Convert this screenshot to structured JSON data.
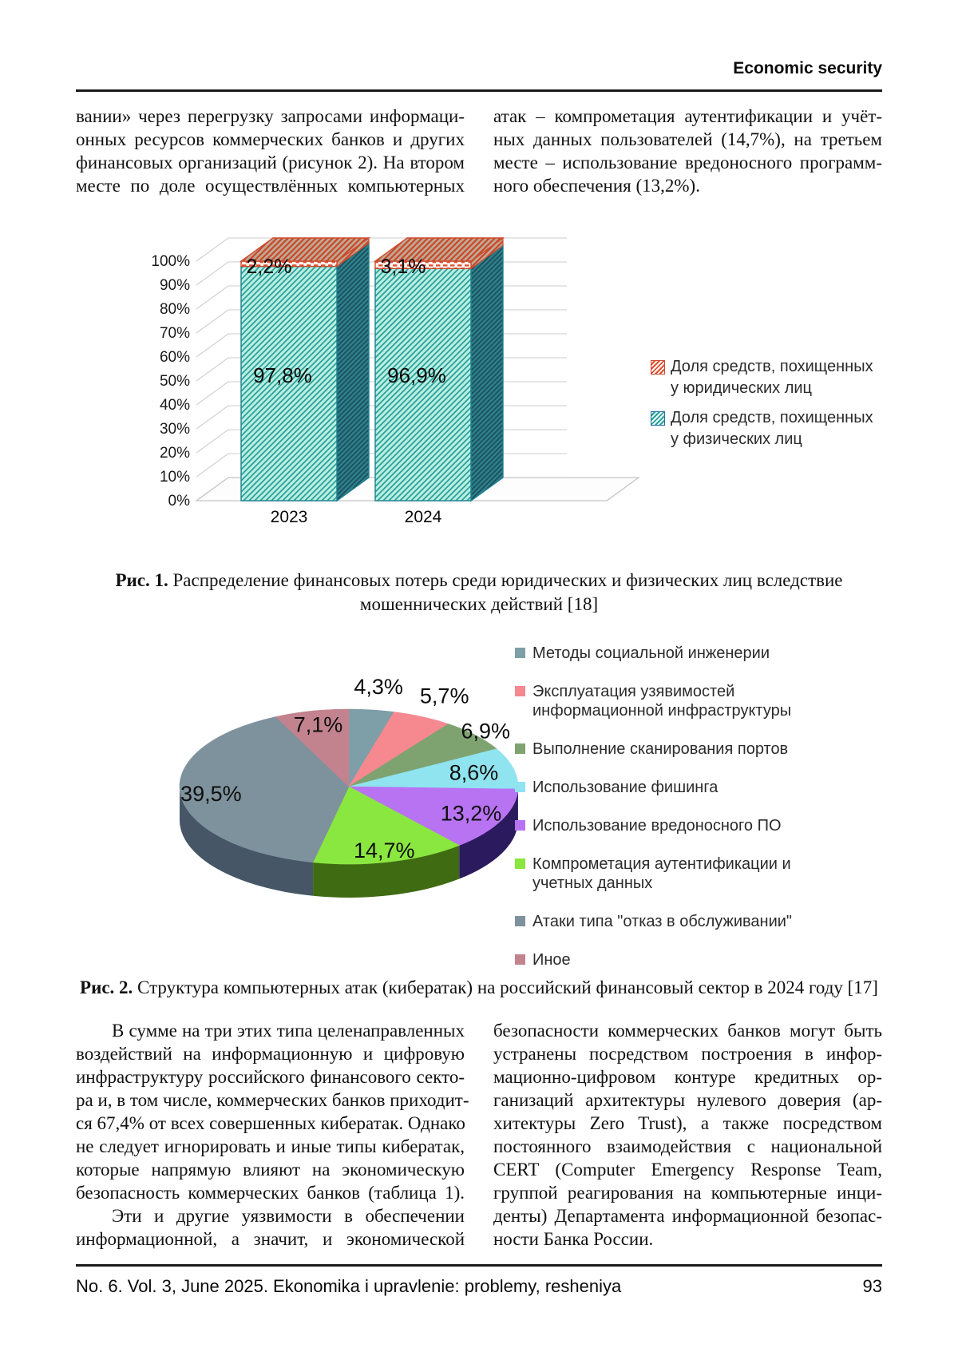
{
  "header": {
    "title": "Economic security"
  },
  "top_text": {
    "left_lines": [
      {
        "text": "вании» через перегрузку запросами информаци-"
      },
      {
        "text": "онных ресурсов коммерческих банков и других"
      },
      {
        "text": "финансовых организаций (рисунок 2). На втором"
      },
      {
        "text": "месте по доле осуществлённых компьютерных"
      }
    ],
    "right_lines": [
      {
        "text": "атак – компрометация аутентификации и учёт-"
      },
      {
        "text": "ных данных пользователей (14,7%), на третьем"
      },
      {
        "text": "месте – использование вредоносного программ-"
      },
      {
        "text": "ного обеспечения (13,2%).",
        "end": true
      }
    ]
  },
  "figure1": {
    "caption_prefix": "Рис. 1.",
    "caption_line1": "Распределение финансовых потерь среди юридических и физических лиц вследствие",
    "caption_line2": "мошеннических действий [18]"
  },
  "figure2": {
    "caption_prefix": "Рис. 2.",
    "caption": "Структура компьютерных атак (кибератак) на российский финансовый сектор в 2024 году [17]"
  },
  "chart_data": [
    {
      "type": "bar",
      "subtype": "stacked-100-percent-3d",
      "categories": [
        "2023",
        "2024"
      ],
      "series": [
        {
          "name": "Доля средств, похищенных у юридических лиц",
          "values": [
            2.2,
            3.1
          ],
          "labels": [
            "2,2%",
            "3,1%"
          ],
          "color": "#e0502f"
        },
        {
          "name": "Доля средств, похищенных у физических лиц",
          "values": [
            97.8,
            96.9
          ],
          "labels": [
            "97,8%",
            "96,9%"
          ],
          "color": "#2aa198"
        }
      ],
      "yticks": [
        "0%",
        "10%",
        "20%",
        "30%",
        "40%",
        "50%",
        "60%",
        "70%",
        "80%",
        "90%",
        "100%"
      ],
      "ylim": [
        0,
        100
      ],
      "grid": true,
      "legend_position": "right"
    },
    {
      "type": "pie",
      "subtype": "pie-3d",
      "labels": [
        "Методы социальной инженерии",
        "Эксплуатация узявимостей информационной инфраструктуры",
        "Выполнение сканирования портов",
        "Использование фишинга",
        "Использование вредоносного ПО",
        "Компрометация аутентификации и учетных данных",
        "Атаки типа \"отказ в обслуживании\"",
        "Иное"
      ],
      "values": [
        4.3,
        5.7,
        6.9,
        8.6,
        13.2,
        14.7,
        39.5,
        7.1
      ],
      "value_labels": [
        "4,3%",
        "5,7%",
        "6,9%",
        "8,6%",
        "13,2%",
        "14,7%",
        "39,5%",
        "7,1%"
      ],
      "colors": [
        "#7e9ea8",
        "#f5898f",
        "#7ea370",
        "#8fe4ef",
        "#b873f2",
        "#8ae73f",
        "#7e929d",
        "#c2838e"
      ],
      "side_colors": [
        "#44565c",
        "#8a4046",
        "#44603a",
        "#1e7a86",
        "#2c1a5e",
        "#3f6b12",
        "#465666",
        "#6e434c"
      ],
      "label_r": [
        1.3,
        1.3,
        1.08,
        0.76,
        0.8,
        0.85,
        0.82,
        0.82
      ],
      "start_angle_deg": 0,
      "direction": "clockwise",
      "legend_position": "right"
    }
  ],
  "bottom_text": {
    "left_lines": [
      {
        "text": "В сумме на три этих типа целенаправленных",
        "indent": true
      },
      {
        "text": "воздействий на информационную и цифровую"
      },
      {
        "text": "инфраструктуру российского финансового секто-"
      },
      {
        "text": "ра и, в том числе, коммерческих банков приходит-"
      },
      {
        "text": "ся 67,4% от всех совершенных кибератак. Однако"
      },
      {
        "text": "не следует игнорировать и иные типы кибератак,"
      },
      {
        "text": "которые напрямую влияют на экономическую"
      },
      {
        "text": "безопасность коммерческих банков (таблица 1)."
      },
      {
        "text": "Эти и другие уязвимости в обеспечении",
        "indent": true
      },
      {
        "text": "информационной, а значит, и экономической"
      }
    ],
    "right_lines": [
      {
        "text": "безопасности коммерческих банков могут быть"
      },
      {
        "text": "устранены посредством построения в инфор-"
      },
      {
        "text": "мационно-цифровом контуре кредитных ор-"
      },
      {
        "text": "ганизаций архитектуры нулевого доверия (ар-"
      },
      {
        "text": "хитектуры Zero Trust), а также посредством"
      },
      {
        "text": "постоянного взаимодействия с национальной"
      },
      {
        "text": "CERT (Computer Emergency Response Team,"
      },
      {
        "text": "группой реагирования на компьютерные инци-"
      },
      {
        "text": "денты) Департамента информационной безопас-"
      },
      {
        "text": "ности Банка России.",
        "end": true
      }
    ]
  },
  "footer": {
    "journal_line": "No. 6. Vol. 3, June 2025. Ekonomika i upravlenie: problemy, resheniya",
    "page_number": "93"
  }
}
